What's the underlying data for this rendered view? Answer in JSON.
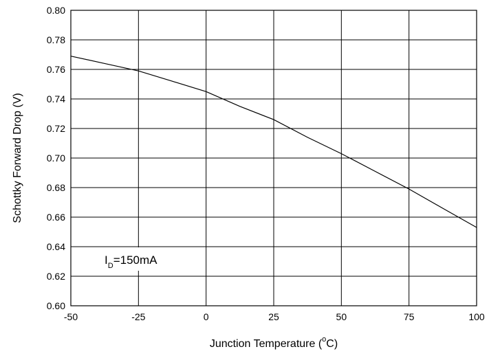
{
  "chart_data": {
    "type": "line",
    "xlabel": "Junction Temperature (",
    "xlabel_degree": "o",
    "xlabel_unit": "C)",
    "ylabel": "Schottky Forward Drop (V)",
    "xlim": [
      -50,
      100
    ],
    "ylim": [
      0.6,
      0.8
    ],
    "x_ticks": [
      "-50",
      "-25",
      "0",
      "25",
      "50",
      "75",
      "100"
    ],
    "y_ticks": [
      "0.60",
      "0.62",
      "0.64",
      "0.66",
      "0.68",
      "0.70",
      "0.72",
      "0.74",
      "0.76",
      "0.78",
      "0.80"
    ],
    "grid": true,
    "series": [
      {
        "x": [
          -50,
          -37.5,
          -25,
          -12.5,
          0,
          12.5,
          25,
          37.5,
          50,
          62.5,
          75,
          87.5,
          100
        ],
        "y": [
          0.769,
          0.764,
          0.759,
          0.752,
          0.745,
          0.735,
          0.726,
          0.714,
          0.703,
          0.691,
          0.679,
          0.666,
          0.653
        ]
      }
    ],
    "annotation": {
      "prefix": "I",
      "subscript": "D",
      "suffix": "=150mA"
    }
  }
}
